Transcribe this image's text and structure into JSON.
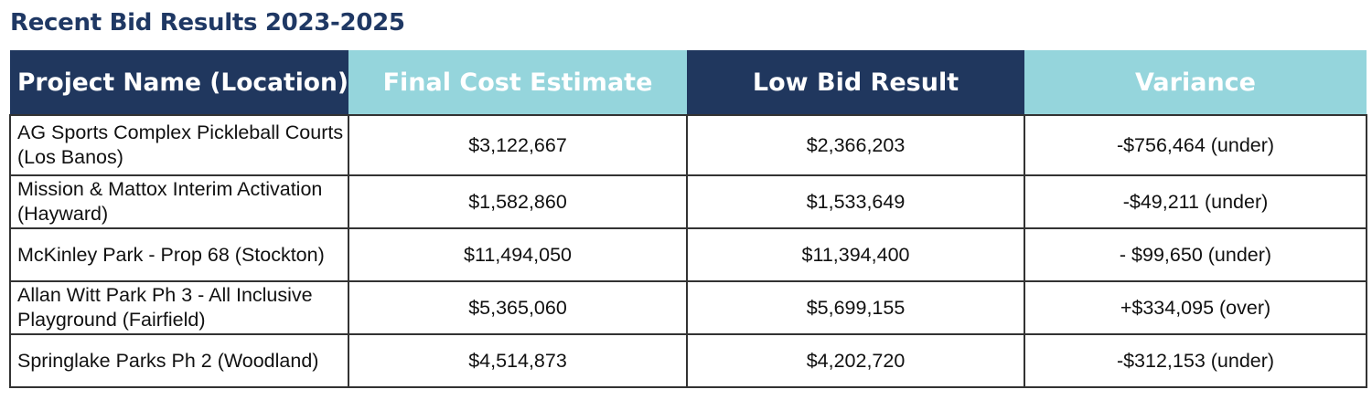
{
  "title": "Recent Bid Results 2023-2025",
  "columns": [
    "Project Name (Location)",
    "Final Cost Estimate",
    "Low Bid Result",
    "Variance"
  ],
  "header_colors": [
    "#20375e",
    "#95d5dc",
    "#20375e",
    "#95d5dc"
  ],
  "rows": [
    {
      "project": "AG Sports Complex Pickleball Courts (Los Banos)",
      "estimate": "$3,122,667",
      "low_bid": "$2,366,203",
      "variance": "-$756,464 (under)"
    },
    {
      "project": "Mission & Mattox Interim Activation (Hayward)",
      "estimate": "$1,582,860",
      "low_bid": "$1,533,649",
      "variance": "-$49,211 (under)"
    },
    {
      "project": "McKinley Park - Prop 68 (Stockton)",
      "estimate": "$11,494,050",
      "low_bid": "$11,394,400",
      "variance": "- $99,650 (under)"
    },
    {
      "project": "Allan Witt Park Ph 3 - All Inclusive Playground (Fairfield)",
      "estimate": "$5,365,060",
      "low_bid": "$5,699,155",
      "variance": "+$334,095 (over)"
    },
    {
      "project": "Springlake Parks Ph 2 (Woodland)",
      "estimate": "$4,514,873",
      "low_bid": "$4,202,720",
      "variance": "-$312,153 (under)"
    }
  ]
}
